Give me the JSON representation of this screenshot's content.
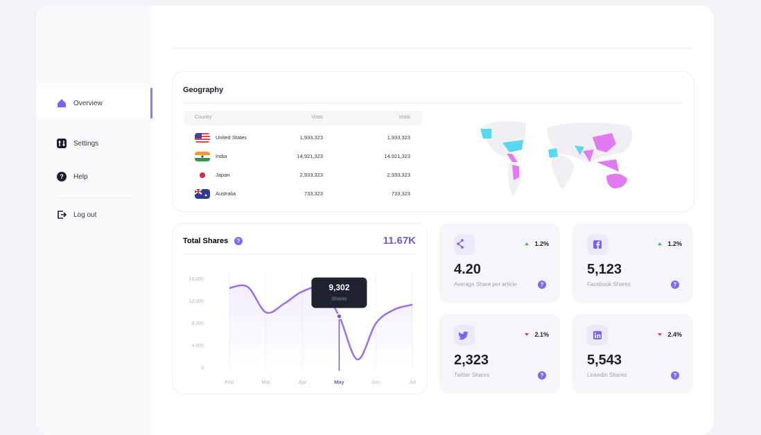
{
  "sidebar": {
    "items": [
      "Overview",
      "Settings",
      "Help",
      "Log out"
    ]
  },
  "geography": {
    "title": "Geography",
    "columns": [
      "Country",
      "Visits",
      "Visits"
    ],
    "rows": [
      [
        "United States",
        "1,933,323",
        "1,933,323"
      ],
      [
        "India",
        "14,921,323",
        "14,921,323"
      ],
      [
        "Japan",
        "2,933,323",
        "2,933,323"
      ],
      [
        "Australia",
        "733,323",
        "733,323"
      ]
    ]
  },
  "chart_data": {
    "type": "line",
    "title": "Total Shares",
    "total": "11.67K",
    "categories": [
      "Feb",
      null,
      "Mar",
      null,
      "Apr",
      null,
      "May",
      null,
      "Jun",
      null,
      "Jul"
    ],
    "series": [
      {
        "name": "Shares",
        "color": "#9b6cf0",
        "values": [
          14400,
          14600,
          10000,
          11600,
          13800,
          14200,
          9302,
          1500,
          8000,
          10500,
          11400
        ]
      }
    ],
    "value_labels": [
      null,
      null,
      null,
      null,
      null,
      null,
      "9,302",
      null,
      null,
      null,
      null
    ],
    "ylim": [
      0,
      16000
    ],
    "yticks": [
      {
        "value": 0,
        "label": "0"
      },
      {
        "value": 4000,
        "label": "4,000"
      },
      {
        "value": 8000,
        "label": "8,000"
      },
      {
        "value": 12000,
        "label": "12,000"
      },
      {
        "value": 16000,
        "label": "16,000"
      }
    ],
    "highlight": 6
  },
  "stats": [
    {
      "value": "4.20",
      "label": "Average Share per article",
      "change": "1.2%",
      "trend": "up",
      "icon": "share"
    },
    {
      "value": "5,123",
      "label": "Facebook Shares",
      "change": "1.2%",
      "trend": "up",
      "icon": "facebook"
    },
    {
      "value": "2,323",
      "label": "Twitter Shares",
      "change": "2.1%",
      "trend": "down",
      "icon": "twitter"
    },
    {
      "value": "5,543",
      "label": "Linkedin Shares",
      "change": "2.4%",
      "trend": "down",
      "icon": "linkedin"
    }
  ]
}
